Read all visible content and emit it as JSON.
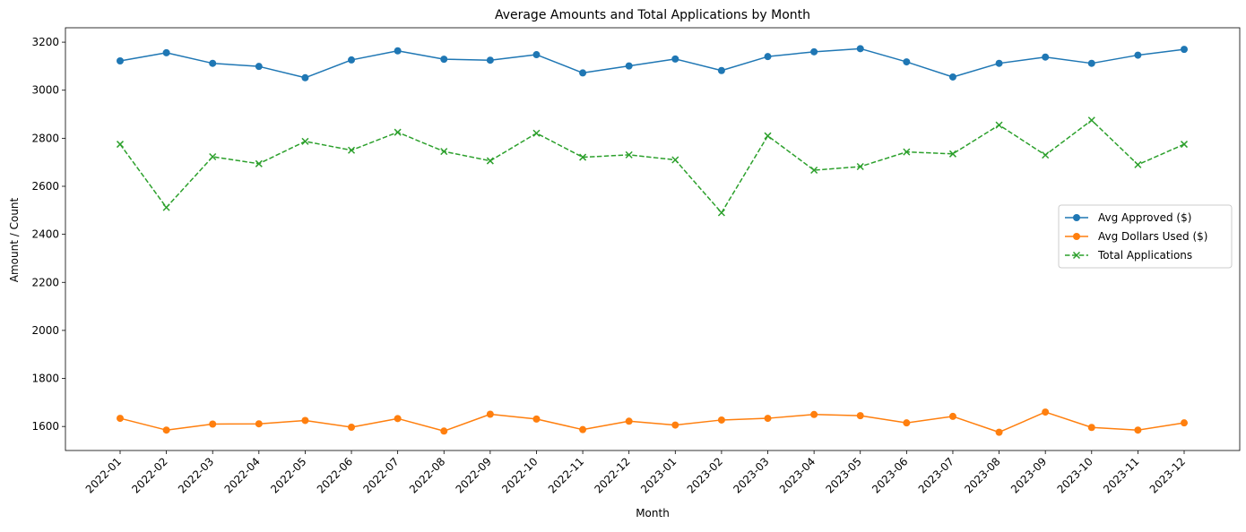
{
  "chart_data": {
    "type": "line",
    "title": "Average Amounts and Total Applications by Month",
    "xlabel": "Month",
    "ylabel": "Amount / Count",
    "categories": [
      "2022-01",
      "2022-02",
      "2022-03",
      "2022-04",
      "2022-05",
      "2022-06",
      "2022-07",
      "2022-08",
      "2022-09",
      "2022-10",
      "2022-11",
      "2022-12",
      "2023-01",
      "2023-02",
      "2023-03",
      "2023-04",
      "2023-05",
      "2023-06",
      "2023-07",
      "2023-08",
      "2023-09",
      "2023-10",
      "2023-11",
      "2023-12"
    ],
    "ylim": [
      1500,
      3260
    ],
    "yticks": [
      1600,
      1800,
      2000,
      2200,
      2400,
      2600,
      2800,
      3000,
      3200
    ],
    "grid": false,
    "legend_position": "center-right",
    "series": [
      {
        "name": "Avg Approved ($)",
        "color": "#1f77b4",
        "marker": "circle",
        "line_style": "solid",
        "values": [
          3122,
          3156,
          3112,
          3099,
          3052,
          3126,
          3164,
          3129,
          3125,
          3148,
          3072,
          3101,
          3130,
          3082,
          3140,
          3160,
          3173,
          3118,
          3055,
          3112,
          3138,
          3112,
          3146,
          3170
        ]
      },
      {
        "name": "Avg Dollars Used ($)",
        "color": "#ff7f0e",
        "marker": "circle",
        "line_style": "solid",
        "values": [
          1634,
          1585,
          1610,
          1611,
          1625,
          1597,
          1633,
          1581,
          1651,
          1631,
          1587,
          1622,
          1606,
          1627,
          1634,
          1650,
          1645,
          1615,
          1642,
          1576,
          1660,
          1596,
          1585,
          1615
        ]
      },
      {
        "name": "Total Applications",
        "color": "#2ca02c",
        "marker": "x",
        "line_style": "dashed",
        "values": [
          2775,
          2512,
          2723,
          2694,
          2787,
          2750,
          2825,
          2745,
          2706,
          2821,
          2721,
          2731,
          2710,
          2490,
          2810,
          2667,
          2682,
          2743,
          2735,
          2855,
          2730,
          2875,
          2690,
          2775
        ]
      }
    ]
  }
}
